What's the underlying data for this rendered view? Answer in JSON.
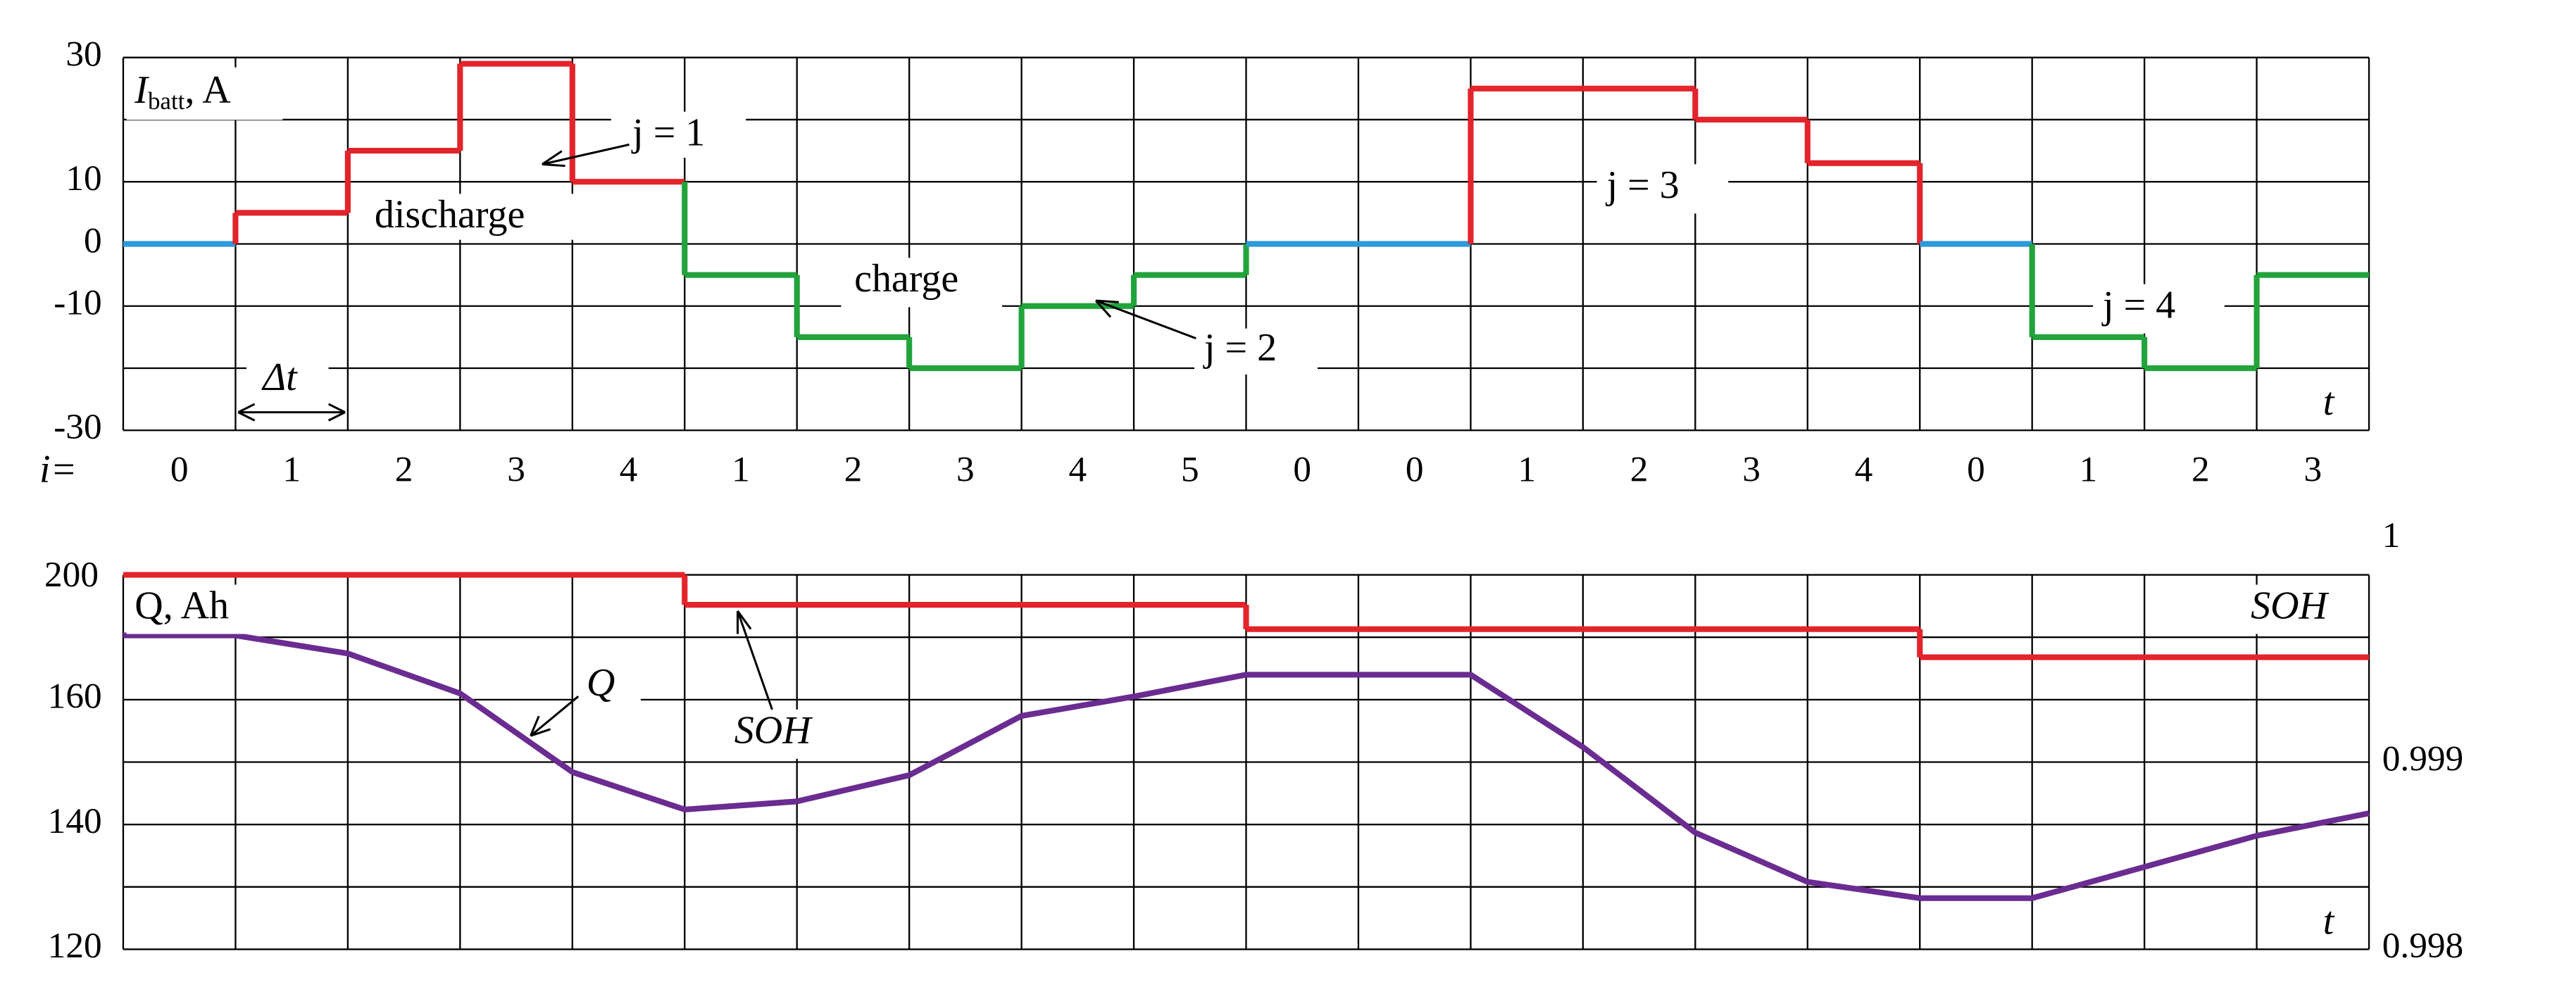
{
  "chart_data": [
    {
      "type": "step",
      "ylabel": {
        "main": "I",
        "sub": "batt",
        "unit": ", A"
      },
      "categories": [
        "0",
        "1",
        "2",
        "3",
        "4",
        "1",
        "2",
        "3",
        "4",
        "5",
        "0",
        "0",
        "1",
        "2",
        "3",
        "4",
        "0",
        "1",
        "2",
        "3"
      ],
      "values": [
        0,
        5,
        15,
        29,
        10,
        -5,
        -15,
        -20,
        -10,
        -5,
        0,
        0,
        25,
        25,
        20,
        13,
        0,
        -15,
        -20,
        -5
      ],
      "discharge_color": "#e3242b",
      "charge_color": "#22a33c",
      "rest_color": "#2e9ad8",
      "ylim": [
        -30,
        30
      ],
      "yticks": [
        30,
        10,
        0,
        -10,
        -30
      ],
      "ygrid": [
        -30,
        -20,
        -10,
        0,
        10,
        20,
        30
      ],
      "xlabel": "t",
      "category_label": "i=",
      "annotations": [
        "j = 1",
        "discharge",
        "charge",
        "j = 2",
        "j = 3",
        "j = 4",
        "Δt"
      ]
    },
    {
      "type": "line",
      "ylabel": "Q, Ah",
      "y2label": "SOH",
      "top_label": "200",
      "xlabel": "t",
      "x": [
        0,
        1,
        2,
        3,
        4,
        5,
        6,
        7,
        8,
        9,
        10,
        11,
        12,
        13,
        14,
        15,
        16,
        17,
        18,
        19,
        20
      ],
      "xlim": [
        0,
        20
      ],
      "series": [
        {
          "name": "Q",
          "color": "#6a2c91",
          "values": [
            170.3,
            170.3,
            167.4,
            161,
            148.4,
            142.4,
            143.7,
            147.9,
            157.4,
            160.5,
            164,
            164,
            164,
            152.4,
            138.7,
            130.8,
            128.2,
            128.2,
            133.2,
            138.2,
            141.8
          ]
        },
        {
          "name": "SOH",
          "color": "#e3242b",
          "axis": "y2",
          "step": true,
          "x": [
            0,
            5,
            10,
            16
          ],
          "values": [
            1,
            0.99984,
            0.99971,
            0.99956
          ]
        }
      ],
      "ylim": [
        120,
        180
      ],
      "yticks": [
        160,
        140,
        120
      ],
      "ygrid": [
        120,
        130,
        140,
        150,
        160,
        170,
        180
      ],
      "y2lim": [
        0.998,
        1
      ],
      "y2ticks": [
        1,
        0.999,
        0.998
      ]
    }
  ]
}
